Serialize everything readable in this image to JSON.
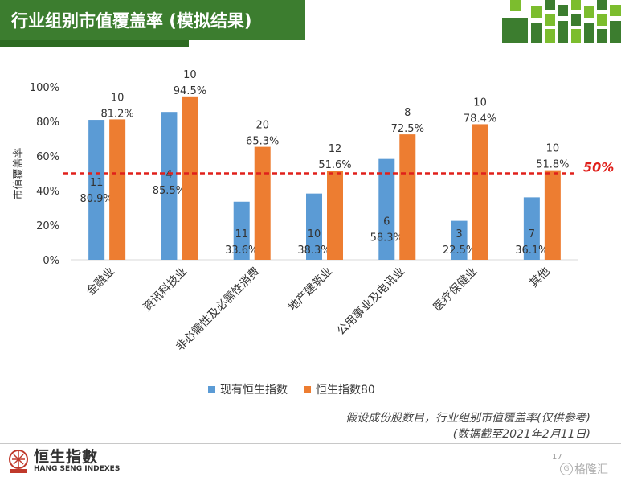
{
  "header": {
    "title": "行业组别市值覆盖率 (模拟结果)"
  },
  "chart_data": {
    "type": "bar",
    "ylabel": "市值覆盖率",
    "ylim": [
      0,
      100
    ],
    "yticks": [
      "0%",
      "20%",
      "40%",
      "60%",
      "80%",
      "100%"
    ],
    "categories": [
      "金融业",
      "资讯科技业",
      "非必需性及必需性消费",
      "地产建筑业",
      "公用事业及电讯业",
      "医疗保健业",
      "其他"
    ],
    "series": [
      {
        "name": "现有恒生指数",
        "color": "#5b9bd5",
        "values": [
          80.9,
          85.5,
          33.6,
          38.3,
          58.3,
          22.5,
          36.1
        ],
        "labels": [
          "80.9%",
          "85.5%",
          "33.6%",
          "38.3%",
          "58.3%",
          "22.5%",
          "36.1%"
        ],
        "counts": [
          "11",
          "4",
          "11",
          "10",
          "6",
          "3",
          "7"
        ]
      },
      {
        "name": "恒生指数80",
        "color": "#ed7d31",
        "values": [
          81.2,
          94.5,
          65.3,
          51.6,
          72.5,
          78.4,
          51.8
        ],
        "labels": [
          "81.2%",
          "94.5%",
          "65.3%",
          "51.6%",
          "72.5%",
          "78.4%",
          "51.8%"
        ],
        "counts": [
          "10",
          "10",
          "20",
          "12",
          "8",
          "10",
          "10"
        ]
      }
    ],
    "reference_line": {
      "value": 50,
      "label": "50%",
      "color": "#e0201b"
    },
    "grid": false,
    "legend_position": "bottom"
  },
  "notes": {
    "line1": "假设成份股数目，行业组别市值覆盖率(仅供参考)",
    "line2": "(数据截至2021年2月11日)"
  },
  "footer": {
    "logo_cn": "恒生指數",
    "logo_en": "HANG SENG INDEXES",
    "page": "17",
    "watermark": "格隆汇",
    "watermark_mark": "G"
  },
  "colors": {
    "header_green": "#3c7d2f",
    "accent_green": "#7cbd2e"
  }
}
